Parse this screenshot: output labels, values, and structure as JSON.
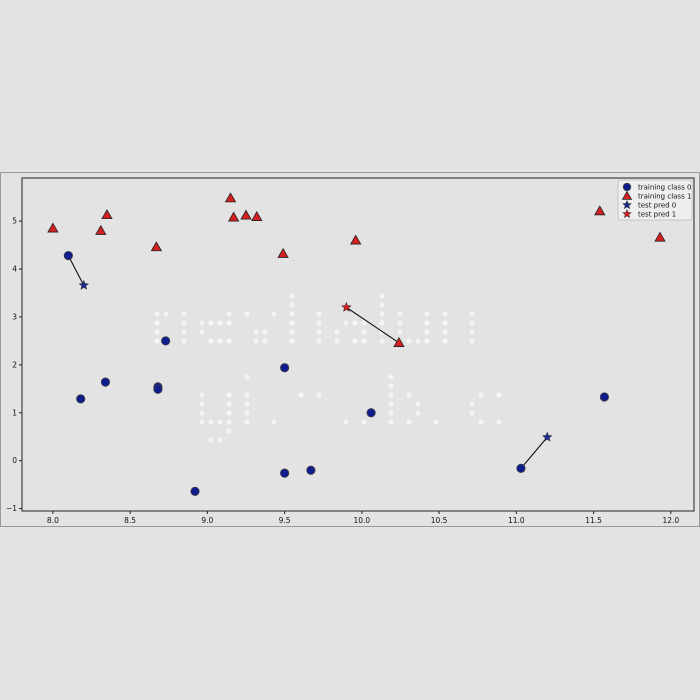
{
  "chart_data": {
    "type": "scatter",
    "title": "",
    "xlabel": "",
    "ylabel": "",
    "xlim": [
      7.8,
      12.15
    ],
    "ylim": [
      -1.05,
      5.9
    ],
    "x_ticks": [
      8.0,
      8.5,
      9.0,
      9.5,
      10.0,
      10.5,
      11.0,
      11.5,
      12.0
    ],
    "x_tick_labels": [
      "8.0",
      "8.5",
      "9.0",
      "9.5",
      "10.0",
      "10.5",
      "11.0",
      "11.5",
      "12.0"
    ],
    "y_ticks": [
      -1,
      0,
      1,
      2,
      3,
      4,
      5
    ],
    "y_tick_labels": [
      "−1",
      "0",
      "1",
      "2",
      "3",
      "4",
      "5"
    ],
    "grid": false,
    "legend_position": "top-right",
    "series": [
      {
        "name": "training class 0",
        "marker": "circle",
        "color": "#0f1c8c",
        "points": [
          [
            8.1,
            4.28
          ],
          [
            8.18,
            1.29
          ],
          [
            8.34,
            1.64
          ],
          [
            8.68,
            1.54
          ],
          [
            8.68,
            1.49
          ],
          [
            8.73,
            2.5
          ],
          [
            8.92,
            -0.64
          ],
          [
            9.5,
            1.94
          ],
          [
            9.5,
            -0.26
          ],
          [
            9.67,
            -0.2
          ],
          [
            10.06,
            1.0
          ],
          [
            11.03,
            -0.16
          ],
          [
            11.57,
            1.33
          ]
        ]
      },
      {
        "name": "training class 1",
        "marker": "triangle",
        "color": "#d42020",
        "points": [
          [
            8.0,
            4.85
          ],
          [
            8.31,
            4.8
          ],
          [
            8.35,
            5.13
          ],
          [
            8.67,
            4.46
          ],
          [
            9.15,
            5.48
          ],
          [
            9.17,
            5.08
          ],
          [
            9.25,
            5.12
          ],
          [
            9.32,
            5.09
          ],
          [
            9.49,
            4.32
          ],
          [
            9.96,
            4.6
          ],
          [
            10.24,
            2.46
          ],
          [
            11.54,
            5.21
          ],
          [
            11.93,
            4.66
          ]
        ]
      },
      {
        "name": "test pred 0",
        "marker": "star",
        "color": "#1e2a8c",
        "points": [
          [
            8.2,
            3.66
          ],
          [
            11.2,
            0.49
          ]
        ]
      },
      {
        "name": "test pred 1",
        "marker": "star",
        "color": "#d42020",
        "points": [
          [
            9.9,
            3.2
          ]
        ]
      }
    ],
    "connections": [
      {
        "from": [
          8.2,
          3.66
        ],
        "to": [
          8.1,
          4.28
        ]
      },
      {
        "from": [
          11.2,
          0.49
        ],
        "to": [
          11.03,
          -0.16
        ]
      },
      {
        "from": [
          9.9,
          3.2
        ],
        "to": [
          10.24,
          2.46
        ]
      }
    ],
    "watermark": [
      "nevhalon",
      "github.io"
    ],
    "colors": {
      "background": "#e3e3e3",
      "axes_face": "#e3e3e3",
      "class0": "#0f1c8c",
      "class1": "#d42020",
      "watermark": "#f4f4f4",
      "line": "#111111"
    }
  }
}
